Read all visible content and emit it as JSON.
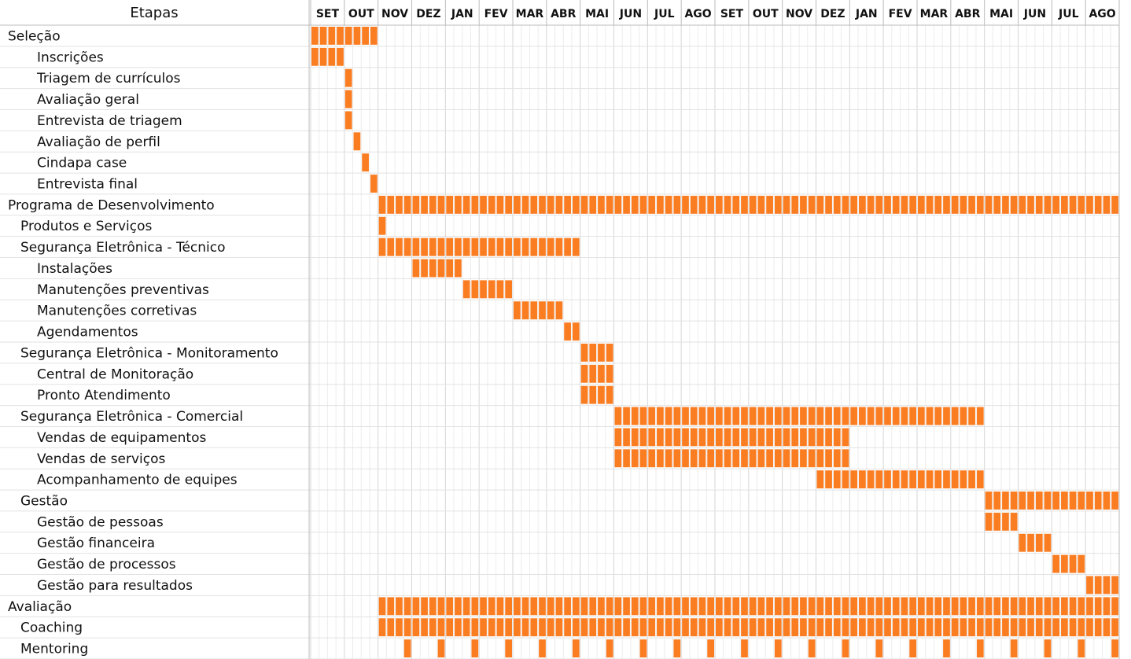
{
  "header": "Etapas",
  "months": [
    "SET",
    "OUT",
    "NOV",
    "DEZ",
    "JAN",
    "FEV",
    "MAR",
    "ABR",
    "MAI",
    "JUN",
    "JUL",
    "AGO",
    "SET",
    "OUT",
    "NOV",
    "DEZ",
    "JAN",
    "FEV",
    "MAR",
    "ABR",
    "MAI",
    "JUN",
    "JUL",
    "AGO"
  ],
  "weeks_per_month": 4,
  "bar_color": "#fb7d22",
  "tasks": [
    {
      "name": "Seleção",
      "level": 0,
      "bars": [
        [
          0,
          7
        ]
      ]
    },
    {
      "name": "Inscrições",
      "level": 2,
      "bars": [
        [
          0,
          3
        ]
      ]
    },
    {
      "name": "Triagem de currículos",
      "level": 2,
      "bars": [
        [
          4,
          4
        ]
      ]
    },
    {
      "name": "Avaliação geral",
      "level": 2,
      "bars": [
        [
          4,
          4
        ]
      ]
    },
    {
      "name": "Entrevista de triagem",
      "level": 2,
      "bars": [
        [
          4,
          4
        ]
      ]
    },
    {
      "name": "Avaliação de perfil",
      "level": 2,
      "bars": [
        [
          5,
          5
        ]
      ]
    },
    {
      "name": "Cindapa case",
      "level": 2,
      "bars": [
        [
          6,
          6
        ]
      ]
    },
    {
      "name": "Entrevista final",
      "level": 2,
      "bars": [
        [
          7,
          7
        ]
      ]
    },
    {
      "name": "Programa de Desenvolvimento",
      "level": 0,
      "bars": [
        [
          8,
          95
        ]
      ]
    },
    {
      "name": "Produtos e Serviços",
      "level": 1,
      "bars": [
        [
          8,
          8
        ]
      ]
    },
    {
      "name": "Segurança Eletrônica - Técnico",
      "level": 1,
      "bars": [
        [
          8,
          31
        ]
      ]
    },
    {
      "name": "Instalações",
      "level": 2,
      "bars": [
        [
          12,
          17
        ]
      ]
    },
    {
      "name": "Manutenções preventivas",
      "level": 2,
      "bars": [
        [
          18,
          23
        ]
      ]
    },
    {
      "name": "Manutenções corretivas",
      "level": 2,
      "bars": [
        [
          24,
          29
        ]
      ]
    },
    {
      "name": "Agendamentos",
      "level": 2,
      "bars": [
        [
          30,
          31
        ]
      ]
    },
    {
      "name": "Segurança Eletrônica - Monitoramento",
      "level": 1,
      "bars": [
        [
          32,
          35
        ]
      ]
    },
    {
      "name": "Central de Monitoração",
      "level": 2,
      "bars": [
        [
          32,
          35
        ]
      ]
    },
    {
      "name": "Pronto Atendimento",
      "level": 2,
      "bars": [
        [
          32,
          35
        ]
      ]
    },
    {
      "name": "Segurança Eletrônica - Comercial",
      "level": 1,
      "bars": [
        [
          36,
          79
        ]
      ]
    },
    {
      "name": "Vendas de equipamentos",
      "level": 2,
      "bars": [
        [
          36,
          63
        ]
      ]
    },
    {
      "name": "Vendas de serviços",
      "level": 2,
      "bars": [
        [
          36,
          63
        ]
      ]
    },
    {
      "name": "Acompanhamento de equipes",
      "level": 2,
      "bars": [
        [
          60,
          79
        ]
      ]
    },
    {
      "name": "Gestão",
      "level": 1,
      "bars": [
        [
          80,
          95
        ]
      ]
    },
    {
      "name": "Gestão de pessoas",
      "level": 2,
      "bars": [
        [
          80,
          83
        ]
      ]
    },
    {
      "name": "Gestão financeira",
      "level": 2,
      "bars": [
        [
          84,
          87
        ]
      ]
    },
    {
      "name": "Gestão de processos",
      "level": 2,
      "bars": [
        [
          88,
          91
        ]
      ]
    },
    {
      "name": "Gestão para resultados",
      "level": 2,
      "bars": [
        [
          92,
          95
        ]
      ]
    },
    {
      "name": "Avaliação",
      "level": 0,
      "bars": [
        [
          8,
          95
        ]
      ]
    },
    {
      "name": "Coaching",
      "level": 1,
      "bars": [
        [
          8,
          95
        ]
      ]
    },
    {
      "name": "Mentoring",
      "level": 1,
      "bars": [
        [
          11,
          11
        ],
        [
          15,
          15
        ],
        [
          19,
          19
        ],
        [
          23,
          23
        ],
        [
          27,
          27
        ],
        [
          31,
          31
        ],
        [
          35,
          35
        ],
        [
          39,
          39
        ],
        [
          43,
          43
        ],
        [
          47,
          47
        ],
        [
          51,
          51
        ],
        [
          55,
          55
        ],
        [
          59,
          59
        ],
        [
          63,
          63
        ],
        [
          67,
          67
        ],
        [
          71,
          71
        ],
        [
          75,
          75
        ],
        [
          79,
          79
        ],
        [
          83,
          83
        ],
        [
          87,
          87
        ],
        [
          91,
          91
        ],
        [
          95,
          95
        ]
      ]
    }
  ]
}
